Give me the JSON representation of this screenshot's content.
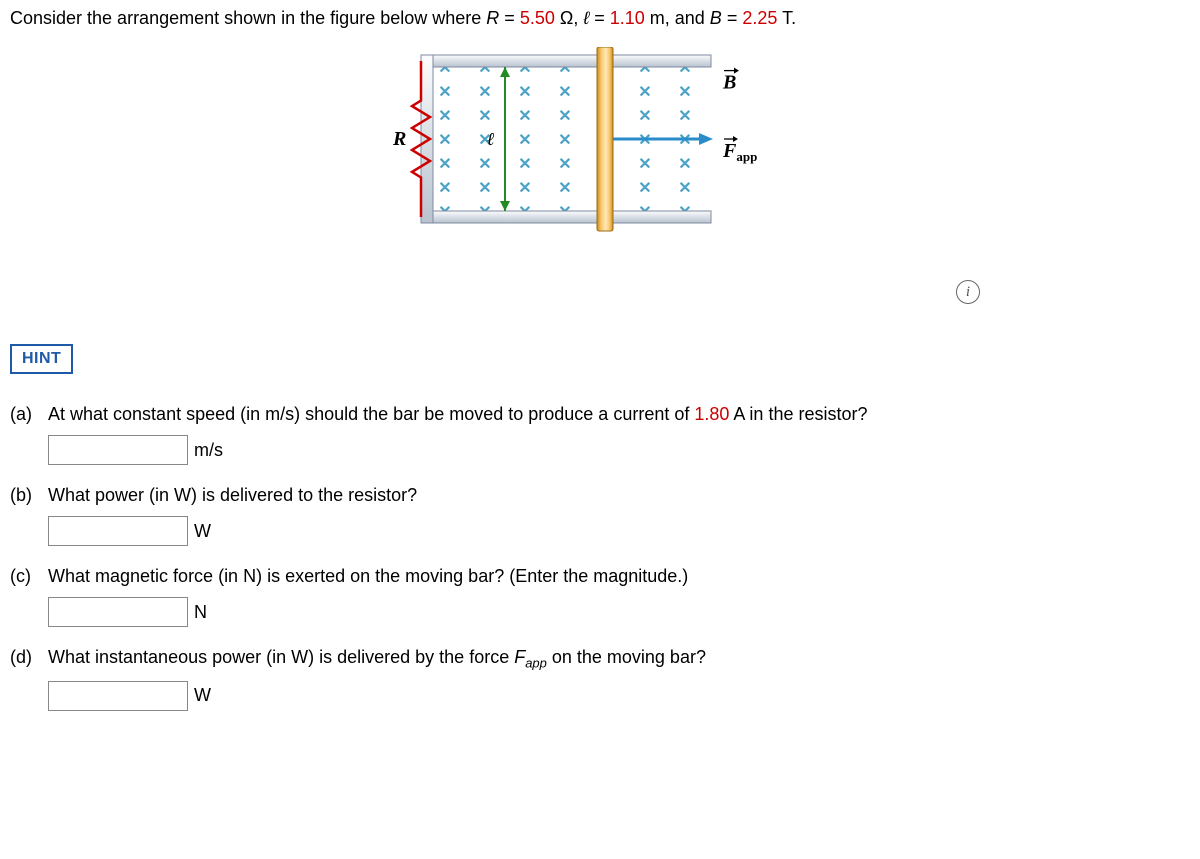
{
  "prompt": {
    "text_before_R": "Consider the arrangement shown in the figure below where ",
    "R_sym": "R",
    "eq1": " = ",
    "R_val": "5.50",
    "R_unit": " Ω, ",
    "l_sym": "ℓ",
    "eq2": " = ",
    "l_val": "1.10",
    "l_unit": " m, and ",
    "B_sym": "B",
    "eq3": " = ",
    "B_val": "2.25",
    "B_unit": " T."
  },
  "figure": {
    "R_label": "R",
    "l_label": "ℓ",
    "B_label": "B",
    "F_label": "F",
    "F_sub": "app",
    "rows": 7,
    "cols": 7,
    "bar_col_after": 4,
    "colors": {
      "x_mark": "#4aa3c7",
      "rail_fill": "#d9dfe6",
      "rail_stroke": "#7d8aa0",
      "bar_fill_light": "#f7c569",
      "bar_fill_dark": "#c98b1e",
      "resistor": "#cc0000",
      "arrow": "#2a8cc9",
      "l_arrow": "#228b22"
    }
  },
  "info_icon": "i",
  "hint_label": "HINT",
  "parts": {
    "a": {
      "label": "(a)",
      "text_before": "At what constant speed (in m/s) should the bar be moved to produce a current of ",
      "value": "1.80",
      "text_after": " A in the resistor?",
      "unit": "m/s"
    },
    "b": {
      "label": "(b)",
      "text": "What power (in W) is delivered to the resistor?",
      "unit": "W"
    },
    "c": {
      "label": "(c)",
      "text": "What magnetic force (in N) is exerted on the moving bar? (Enter the magnitude.)",
      "unit": "N"
    },
    "d": {
      "label": "(d)",
      "text_before": "What instantaneous power (in W) is delivered by the force ",
      "F_sym": "F",
      "F_sub": "app",
      "text_after": " on the moving bar?",
      "unit": "W"
    }
  }
}
